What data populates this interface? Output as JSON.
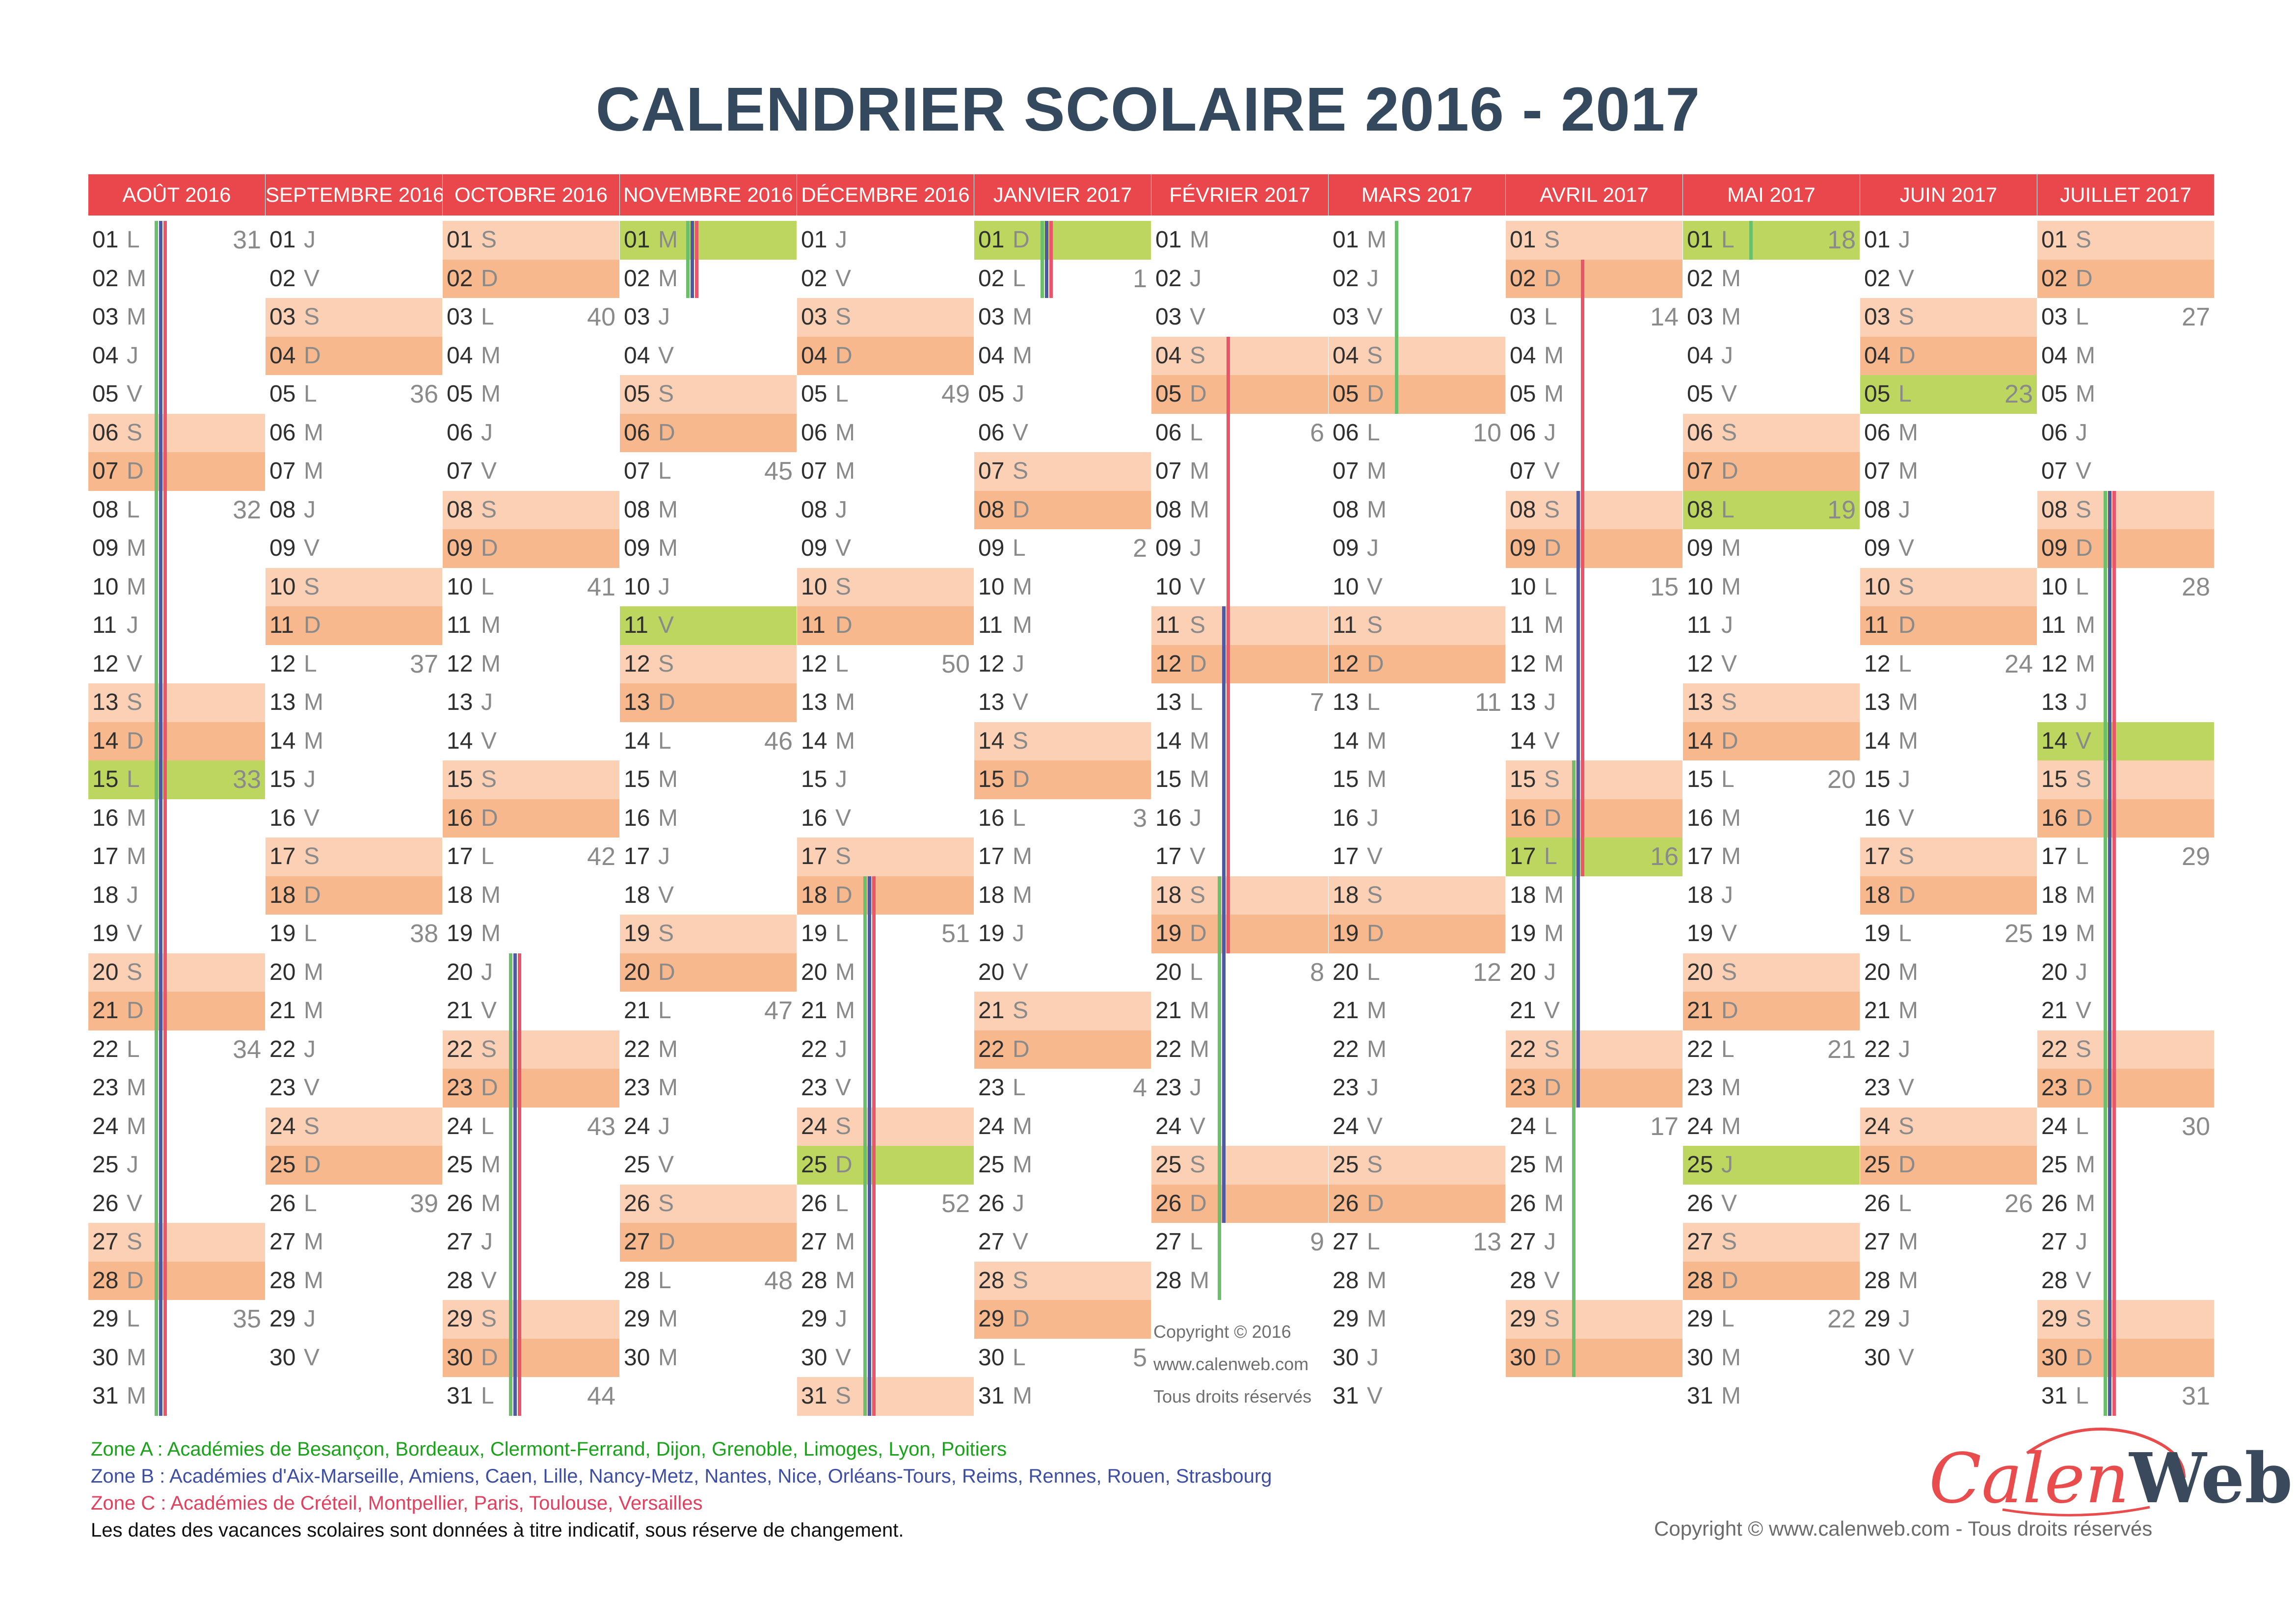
{
  "title": "CALENDRIER SCOLAIRE  2016 - 2017",
  "colors": {
    "header": "#e9474c",
    "saturday": "#fbd0b4",
    "sunday": "#f6b88c",
    "holiday": "#bcd65f",
    "zoneA": "#6cbf6a",
    "zoneB": "#4e5aa0",
    "zoneC": "#e9566b"
  },
  "months": [
    {
      "label": "AOÛT 2016",
      "year": 2016,
      "month": 8,
      "weeks": {
        "1": "31",
        "8": "32",
        "15": "33",
        "22": "34",
        "29": "35"
      },
      "holidays": [
        15
      ],
      "zones": {
        "A": [
          [
            1,
            31
          ]
        ],
        "B": [
          [
            1,
            31
          ]
        ],
        "C": [
          [
            1,
            31
          ]
        ]
      }
    },
    {
      "label": "SEPTEMBRE 2016",
      "year": 2016,
      "month": 9,
      "weeks": {
        "5": "36",
        "12": "37",
        "19": "38",
        "26": "39"
      },
      "holidays": [],
      "zones": {}
    },
    {
      "label": "OCTOBRE 2016",
      "year": 2016,
      "month": 10,
      "weeks": {
        "3": "40",
        "10": "41",
        "17": "42",
        "24": "43",
        "31": "44"
      },
      "holidays": [],
      "zones": {
        "A": [
          [
            20,
            31
          ]
        ],
        "B": [
          [
            20,
            31
          ]
        ],
        "C": [
          [
            20,
            31
          ]
        ]
      }
    },
    {
      "label": "NOVEMBRE 2016",
      "year": 2016,
      "month": 11,
      "weeks": {
        "7": "45",
        "14": "46",
        "21": "47",
        "28": "48"
      },
      "holidays": [
        1,
        11
      ],
      "zones": {
        "A": [
          [
            1,
            2
          ]
        ],
        "B": [
          [
            1,
            2
          ]
        ],
        "C": [
          [
            1,
            2
          ]
        ]
      }
    },
    {
      "label": "DÉCEMBRE 2016",
      "year": 2016,
      "month": 12,
      "weeks": {
        "5": "49",
        "12": "50",
        "19": "51",
        "26": "52"
      },
      "holidays": [
        25
      ],
      "zones": {
        "A": [
          [
            18,
            31
          ]
        ],
        "B": [
          [
            18,
            31
          ]
        ],
        "C": [
          [
            18,
            31
          ]
        ]
      }
    },
    {
      "label": "JANVIER 2017",
      "year": 2017,
      "month": 1,
      "weeks": {
        "2": "1",
        "9": "2",
        "16": "3",
        "23": "4",
        "30": "5"
      },
      "holidays": [
        1
      ],
      "zones": {
        "A": [
          [
            1,
            2
          ]
        ],
        "B": [
          [
            1,
            2
          ]
        ],
        "C": [
          [
            1,
            2
          ]
        ]
      }
    },
    {
      "label": "FÉVRIER 2017",
      "year": 2017,
      "month": 2,
      "weeks": {
        "6": "6",
        "13": "7",
        "20": "8",
        "27": "9"
      },
      "holidays": [],
      "zones": {
        "A": [
          [
            18,
            28
          ]
        ],
        "B": [
          [
            11,
            26
          ]
        ],
        "C": [
          [
            4,
            19
          ]
        ]
      }
    },
    {
      "label": "MARS 2017",
      "year": 2017,
      "month": 3,
      "weeks": {
        "6": "10",
        "13": "11",
        "20": "12",
        "27": "13"
      },
      "holidays": [],
      "zones": {
        "A": [
          [
            1,
            5
          ]
        ]
      }
    },
    {
      "label": "AVRIL 2017",
      "year": 2017,
      "month": 4,
      "weeks": {
        "3": "14",
        "10": "15",
        "17": "16",
        "24": "17"
      },
      "holidays": [
        17
      ],
      "zones": {
        "A": [
          [
            15,
            30
          ]
        ],
        "B": [
          [
            8,
            23
          ]
        ],
        "C": [
          [
            2,
            17
          ]
        ]
      }
    },
    {
      "label": "MAI 2017",
      "year": 2017,
      "month": 5,
      "weeks": {
        "1": "18",
        "8": "19",
        "15": "20",
        "22": "21",
        "29": "22"
      },
      "holidays": [
        1,
        8,
        25
      ],
      "zones": {
        "A": [
          [
            1,
            1
          ]
        ]
      }
    },
    {
      "label": "JUIN 2017",
      "year": 2017,
      "month": 6,
      "weeks": {
        "5": "23",
        "12": "24",
        "19": "25",
        "26": "26"
      },
      "holidays": [
        5
      ],
      "zones": {}
    },
    {
      "label": "JUILLET 2017",
      "year": 2017,
      "month": 7,
      "weeks": {
        "3": "27",
        "10": "28",
        "17": "29",
        "24": "30",
        "31": "31"
      },
      "holidays": [
        14
      ],
      "zones": {
        "A": [
          [
            8,
            31
          ]
        ],
        "B": [
          [
            8,
            31
          ]
        ],
        "C": [
          [
            8,
            31
          ]
        ]
      }
    }
  ],
  "day_letters": [
    "D",
    "L",
    "M",
    "M",
    "J",
    "V",
    "S"
  ],
  "copyright_note": [
    "Copyright  ©  2016",
    "www.calenweb.com",
    "Tous droits réservés"
  ],
  "legend": {
    "zoneA": "Zone A : Académies de Besançon,  Bordeaux,  Clermont-Ferrand,  Dijon,  Grenoble,  Limoges,  Lyon,  Poitiers",
    "zoneB": "Zone B : Académies d'Aix-Marseille,  Amiens,  Caen,  Lille,  Nancy-Metz,  Nantes,  Nice,  Orléans-Tours, Reims,  Rennes,  Rouen,  Strasbourg",
    "zoneC": "Zone C : Académies de Créteil,  Montpellier,  Paris,  Toulouse,  Versailles",
    "disclaimer": "Les dates des vacances scolaires sont données à titre indicatif, sous réserve de changement."
  },
  "logo": {
    "part1": "Calen",
    "part2": "Web"
  },
  "footer_copyright": "Copyright  ©  www.calenweb.com - Tous droits réservés"
}
